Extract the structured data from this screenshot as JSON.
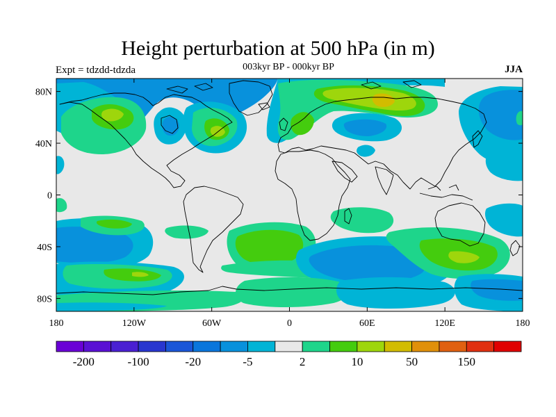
{
  "title": "Height perturbation at 500 hPa (in m)",
  "subtitle": "003kyr BP - 000kyr BP",
  "expt_label": "Expt = tdzdd-tdzda",
  "season": "JJA",
  "map": {
    "projection": "cylindrical-equidistant",
    "lon_range": [
      -180,
      180
    ],
    "lat_range": [
      -90,
      90
    ],
    "lat_ticks": [
      {
        "value": 80,
        "label": "80N"
      },
      {
        "value": 40,
        "label": "40N"
      },
      {
        "value": 0,
        "label": "0"
      },
      {
        "value": -40,
        "label": "40S"
      },
      {
        "value": -80,
        "label": "80S"
      }
    ],
    "lon_ticks": [
      {
        "value": -180,
        "label": "180"
      },
      {
        "value": -120,
        "label": "120W"
      },
      {
        "value": -60,
        "label": "60W"
      },
      {
        "value": 0,
        "label": "0"
      },
      {
        "value": 60,
        "label": "60E"
      },
      {
        "value": 120,
        "label": "120E"
      },
      {
        "value": 180,
        "label": "180"
      }
    ],
    "colors": {
      "c1": "#0891dc",
      "c2": "#00b4d6",
      "c3": "#1ed58b",
      "c4": "#44cc0e",
      "c5": "#9ed60c",
      "c6": "#d2bc00",
      "c7": "#e0900a",
      "neutral": "#e8e8e8",
      "coast": "#000000"
    }
  },
  "colorbar": {
    "colors": [
      "#6a00d6",
      "#5a10d4",
      "#4a20d2",
      "#2836cf",
      "#1a56d8",
      "#0a76dc",
      "#0891dc",
      "#00b4d6",
      "#e8e8e8",
      "#1ed58b",
      "#44cc0e",
      "#9ed60c",
      "#d2bc00",
      "#e0900a",
      "#e06010",
      "#e03010",
      "#e00000"
    ],
    "labels": [
      {
        "text": "-200",
        "boundary": 1
      },
      {
        "text": "-100",
        "boundary": 3
      },
      {
        "text": "-20",
        "boundary": 5
      },
      {
        "text": "-5",
        "boundary": 7
      },
      {
        "text": "2",
        "boundary": 9
      },
      {
        "text": "10",
        "boundary": 11
      },
      {
        "text": "50",
        "boundary": 13
      },
      {
        "text": "150",
        "boundary": 15
      }
    ]
  }
}
